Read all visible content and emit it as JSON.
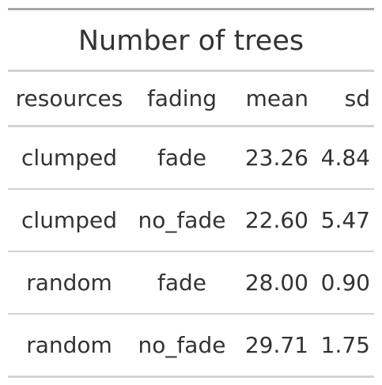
{
  "table": {
    "title": "Number of trees",
    "columns": [
      "resources",
      "fading",
      "mean",
      "sd"
    ],
    "rows": [
      [
        "clumped",
        "fade",
        "23.26",
        "4.84"
      ],
      [
        "clumped",
        "no_fade",
        "22.60",
        "5.47"
      ],
      [
        "random",
        "fade",
        "28.00",
        "0.90"
      ],
      [
        "random",
        "no_fade",
        "29.71",
        "1.75"
      ]
    ]
  },
  "colors": {
    "text": "#333333",
    "top_border": "#a8a8a8",
    "row_border": "#d3d3d3"
  }
}
